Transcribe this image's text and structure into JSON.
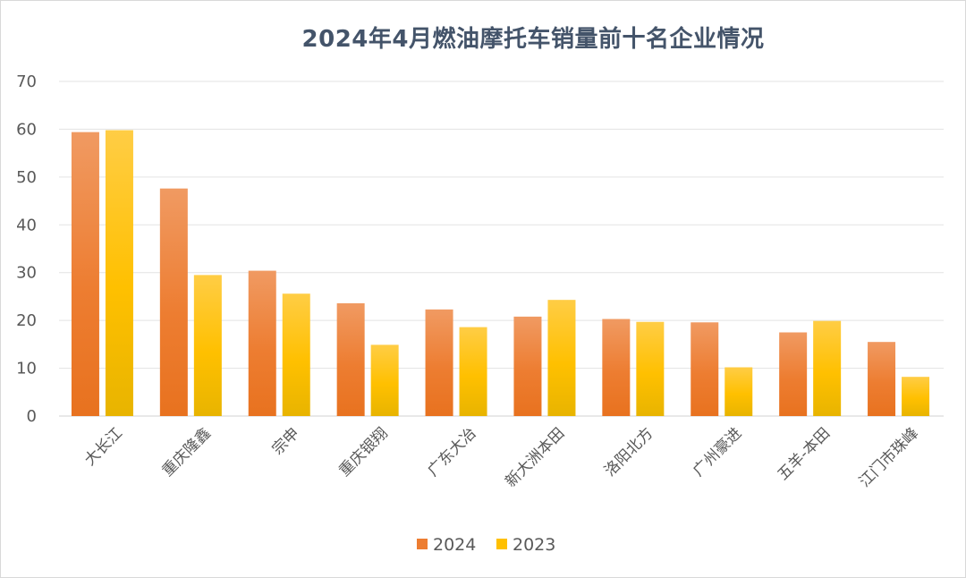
{
  "chart_data": {
    "type": "bar",
    "title": "2024年4月燃油摩托车销量前十名企业情况",
    "categories": [
      "大长江",
      "重庆隆鑫",
      "宗申",
      "重庆银翔",
      "广东大冶",
      "新大洲本田",
      "洛阳北方",
      "广州豪进",
      "五羊-本田",
      "江门市珠峰"
    ],
    "series": [
      {
        "name": "2024",
        "color": "#ed7d31",
        "values": [
          59.4,
          47.6,
          30.4,
          23.6,
          22.3,
          20.8,
          20.3,
          19.6,
          17.5,
          15.5
        ]
      },
      {
        "name": "2023",
        "color": "#ffc000",
        "values": [
          59.8,
          29.5,
          25.6,
          14.9,
          18.6,
          24.3,
          19.7,
          10.2,
          19.9,
          8.2
        ]
      }
    ],
    "ylim": [
      0,
      70
    ],
    "yticks": [
      0,
      10,
      20,
      30,
      40,
      50,
      60,
      70
    ],
    "grid": true,
    "legend_position": "bottom"
  }
}
